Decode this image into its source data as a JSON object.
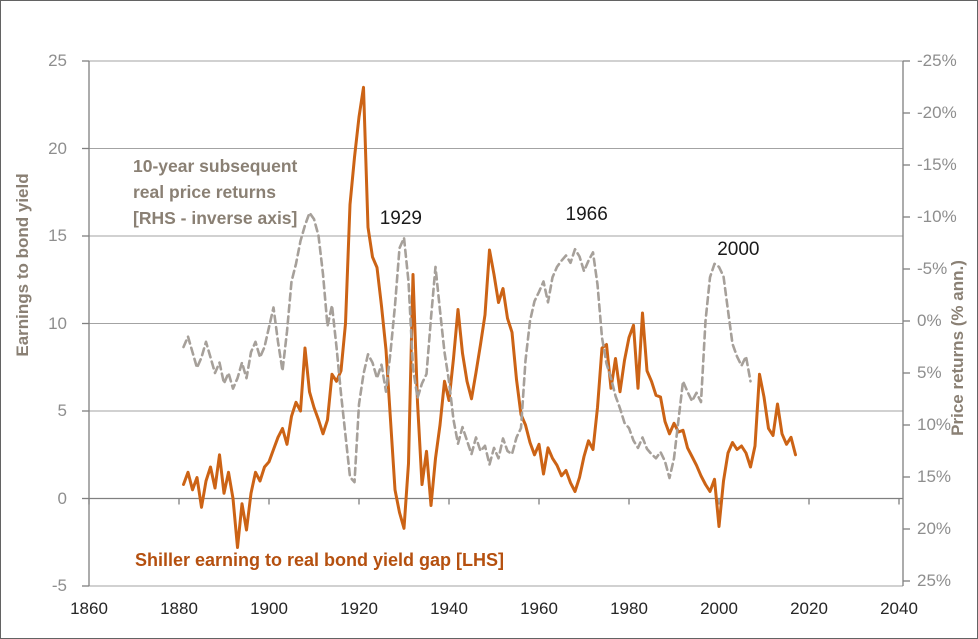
{
  "figure": {
    "left_axis_title": "Earnings to bond yield",
    "right_axis_title": "Price returns (% ann.)",
    "rhs_series_label_lines": [
      "10-year subsequent",
      "real price returns",
      "[RHS - inverse axis]"
    ],
    "lhs_series_label": "Shiller earning to real bond yield gap [LHS]",
    "colors": {
      "lhs_line": "#cc6315",
      "lhs_label_text": "#b5500f",
      "rhs_line": "#a6a09a",
      "axis_text": "#8e8e8e",
      "axis_title_text": "#8a8074",
      "x_tick_text": "#262626",
      "gridline": "#a3a3a3",
      "axis_line": "#808080",
      "annotation_text": "#1a1a1a"
    }
  },
  "chart_data": {
    "type": "line",
    "title": "",
    "xlabel": "",
    "x_axis": {
      "ticks": [
        1860,
        1880,
        1900,
        1920,
        1940,
        1960,
        1980,
        2000,
        2020,
        2040
      ],
      "range": [
        1860,
        2040
      ]
    },
    "left_axis": {
      "label": "Earnings to bond yield",
      "ticks": [
        25,
        20,
        15,
        10,
        5,
        0,
        -5
      ],
      "range": [
        -5,
        25
      ]
    },
    "right_axis": {
      "label": "Price returns (% ann.)",
      "tick_labels": [
        "-25%",
        "-20%",
        "-15%",
        "-10%",
        "-5%",
        "0%",
        "5%",
        "10%",
        "15%",
        "20%",
        "25%"
      ],
      "tick_values": [
        -25,
        -20,
        -15,
        -10,
        -5,
        0,
        5,
        10,
        15,
        20,
        25
      ],
      "range": [
        -25,
        25
      ],
      "inverted": true
    },
    "grid": "horizontal",
    "annotations": [
      {
        "text": "1929",
        "year": 1929.3,
        "lhs_value": 16.0
      },
      {
        "text": "1966",
        "year": 1970.6,
        "lhs_value": 16.2
      },
      {
        "text": "2000",
        "year": 2004.3,
        "lhs_value": 14.2
      }
    ],
    "series": [
      {
        "name": "Shiller earning to real bond yield gap [LHS]",
        "axis": "left",
        "style": "solid",
        "color": "#cc6315",
        "points": [
          [
            1881,
            0.8
          ],
          [
            1882,
            1.5
          ],
          [
            1883,
            0.5
          ],
          [
            1884,
            1.2
          ],
          [
            1885,
            -0.5
          ],
          [
            1886,
            1.0
          ],
          [
            1887,
            1.8
          ],
          [
            1888,
            0.6
          ],
          [
            1889,
            2.5
          ],
          [
            1890,
            0.3
          ],
          [
            1891,
            1.5
          ],
          [
            1892,
            0.0
          ],
          [
            1893,
            -2.8
          ],
          [
            1894,
            -0.3
          ],
          [
            1895,
            -1.8
          ],
          [
            1896,
            0.3
          ],
          [
            1897,
            1.5
          ],
          [
            1898,
            1.0
          ],
          [
            1899,
            1.8
          ],
          [
            1900,
            2.1
          ],
          [
            1901,
            2.8
          ],
          [
            1902,
            3.5
          ],
          [
            1903,
            4.0
          ],
          [
            1904,
            3.1
          ],
          [
            1905,
            4.7
          ],
          [
            1906,
            5.5
          ],
          [
            1907,
            5.0
          ],
          [
            1908,
            8.6
          ],
          [
            1909,
            6.1
          ],
          [
            1910,
            5.2
          ],
          [
            1911,
            4.5
          ],
          [
            1912,
            3.7
          ],
          [
            1913,
            4.5
          ],
          [
            1914,
            7.1
          ],
          [
            1915,
            6.7
          ],
          [
            1916,
            7.3
          ],
          [
            1917,
            10.0
          ],
          [
            1918,
            16.8
          ],
          [
            1919,
            19.5
          ],
          [
            1920,
            21.8
          ],
          [
            1921,
            23.5
          ],
          [
            1922,
            15.5
          ],
          [
            1923,
            13.8
          ],
          [
            1924,
            13.2
          ],
          [
            1925,
            11.0
          ],
          [
            1926,
            8.5
          ],
          [
            1927,
            4.5
          ],
          [
            1928,
            0.5
          ],
          [
            1929,
            -0.8
          ],
          [
            1930,
            -1.7
          ],
          [
            1931,
            2.0
          ],
          [
            1932,
            12.8
          ],
          [
            1933,
            5.5
          ],
          [
            1934,
            0.8
          ],
          [
            1935,
            2.7
          ],
          [
            1936,
            -0.4
          ],
          [
            1937,
            2.3
          ],
          [
            1938,
            4.2
          ],
          [
            1939,
            6.7
          ],
          [
            1940,
            5.6
          ],
          [
            1941,
            8.0
          ],
          [
            1942,
            10.8
          ],
          [
            1943,
            8.3
          ],
          [
            1944,
            6.7
          ],
          [
            1945,
            5.7
          ],
          [
            1946,
            7.2
          ],
          [
            1947,
            8.8
          ],
          [
            1948,
            10.5
          ],
          [
            1949,
            14.2
          ],
          [
            1950,
            12.8
          ],
          [
            1951,
            11.2
          ],
          [
            1952,
            12.0
          ],
          [
            1953,
            10.3
          ],
          [
            1954,
            9.5
          ],
          [
            1955,
            6.8
          ],
          [
            1956,
            4.8
          ],
          [
            1957,
            4.2
          ],
          [
            1958,
            3.2
          ],
          [
            1959,
            2.5
          ],
          [
            1960,
            3.1
          ],
          [
            1961,
            1.4
          ],
          [
            1962,
            2.9
          ],
          [
            1963,
            2.3
          ],
          [
            1964,
            1.9
          ],
          [
            1965,
            1.3
          ],
          [
            1966,
            1.6
          ],
          [
            1967,
            0.9
          ],
          [
            1968,
            0.4
          ],
          [
            1969,
            1.2
          ],
          [
            1970,
            2.4
          ],
          [
            1971,
            3.3
          ],
          [
            1972,
            2.8
          ],
          [
            1973,
            5.2
          ],
          [
            1974,
            8.6
          ],
          [
            1975,
            8.8
          ],
          [
            1976,
            6.3
          ],
          [
            1977,
            8.0
          ],
          [
            1978,
            6.1
          ],
          [
            1979,
            7.9
          ],
          [
            1980,
            9.2
          ],
          [
            1981,
            9.9
          ],
          [
            1982,
            6.3
          ],
          [
            1983,
            10.6
          ],
          [
            1984,
            7.3
          ],
          [
            1985,
            6.7
          ],
          [
            1986,
            5.9
          ],
          [
            1987,
            5.8
          ],
          [
            1988,
            4.4
          ],
          [
            1989,
            3.7
          ],
          [
            1990,
            4.3
          ],
          [
            1991,
            3.8
          ],
          [
            1992,
            3.9
          ],
          [
            1993,
            2.9
          ],
          [
            1994,
            2.4
          ],
          [
            1995,
            1.9
          ],
          [
            1996,
            1.3
          ],
          [
            1997,
            0.8
          ],
          [
            1998,
            0.4
          ],
          [
            1999,
            1.1
          ],
          [
            2000,
            -1.6
          ],
          [
            2001,
            1.0
          ],
          [
            2002,
            2.6
          ],
          [
            2003,
            3.2
          ],
          [
            2004,
            2.8
          ],
          [
            2005,
            3.0
          ],
          [
            2006,
            2.6
          ],
          [
            2007,
            1.8
          ],
          [
            2008,
            3.0
          ],
          [
            2009,
            7.1
          ],
          [
            2010,
            5.8
          ],
          [
            2011,
            4.0
          ],
          [
            2012,
            3.6
          ],
          [
            2013,
            5.4
          ],
          [
            2014,
            3.7
          ],
          [
            2015,
            3.1
          ],
          [
            2016,
            3.5
          ],
          [
            2017,
            2.5
          ]
        ]
      },
      {
        "name": "10-year subsequent real price returns [RHS - inverse axis]",
        "axis": "right",
        "style": "dashed",
        "color": "#a6a09a",
        "points": [
          [
            1881,
            2.5
          ],
          [
            1882,
            1.5
          ],
          [
            1883,
            3.0
          ],
          [
            1884,
            4.5
          ],
          [
            1885,
            3.5
          ],
          [
            1886,
            2.0
          ],
          [
            1887,
            3.5
          ],
          [
            1888,
            5.0
          ],
          [
            1889,
            4.0
          ],
          [
            1890,
            6.0
          ],
          [
            1891,
            5.0
          ],
          [
            1892,
            6.5
          ],
          [
            1893,
            5.5
          ],
          [
            1894,
            4.0
          ],
          [
            1895,
            5.5
          ],
          [
            1896,
            3.0
          ],
          [
            1897,
            2.0
          ],
          [
            1898,
            3.5
          ],
          [
            1899,
            2.5
          ],
          [
            1900,
            0.6
          ],
          [
            1901,
            -1.3
          ],
          [
            1902,
            2.0
          ],
          [
            1903,
            4.8
          ],
          [
            1904,
            1.0
          ],
          [
            1905,
            -3.8
          ],
          [
            1906,
            -5.5
          ],
          [
            1907,
            -7.7
          ],
          [
            1908,
            -9.2
          ],
          [
            1909,
            -10.4
          ],
          [
            1910,
            -9.8
          ],
          [
            1911,
            -8.2
          ],
          [
            1912,
            -4.5
          ],
          [
            1913,
            0.5
          ],
          [
            1914,
            -1.5
          ],
          [
            1915,
            2.5
          ],
          [
            1916,
            7.0
          ],
          [
            1917,
            11.0
          ],
          [
            1918,
            15.0
          ],
          [
            1919,
            15.5
          ],
          [
            1920,
            8.0
          ],
          [
            1921,
            5.1
          ],
          [
            1922,
            3.2
          ],
          [
            1923,
            4.0
          ],
          [
            1924,
            5.5
          ],
          [
            1925,
            4.2
          ],
          [
            1926,
            6.8
          ],
          [
            1927,
            3.0
          ],
          [
            1928,
            -1.5
          ],
          [
            1929,
            -7.0
          ],
          [
            1930,
            -8.0
          ],
          [
            1931,
            -3.8
          ],
          [
            1932,
            4.5
          ],
          [
            1933,
            7.4
          ],
          [
            1934,
            6.0
          ],
          [
            1935,
            5.1
          ],
          [
            1936,
            -0.3
          ],
          [
            1937,
            -5.2
          ],
          [
            1938,
            -1.0
          ],
          [
            1939,
            3.0
          ],
          [
            1940,
            5.8
          ],
          [
            1941,
            9.5
          ],
          [
            1942,
            11.8
          ],
          [
            1943,
            10.2
          ],
          [
            1944,
            11.5
          ],
          [
            1945,
            12.8
          ],
          [
            1946,
            11.2
          ],
          [
            1947,
            12.5
          ],
          [
            1948,
            12.0
          ],
          [
            1949,
            13.8
          ],
          [
            1950,
            12.2
          ],
          [
            1951,
            13.2
          ],
          [
            1952,
            11.3
          ],
          [
            1953,
            12.5
          ],
          [
            1954,
            12.8
          ],
          [
            1955,
            11.2
          ],
          [
            1956,
            10.3
          ],
          [
            1957,
            3.8
          ],
          [
            1958,
            0.0
          ],
          [
            1959,
            -1.9
          ],
          [
            1960,
            -2.8
          ],
          [
            1961,
            -3.8
          ],
          [
            1962,
            -1.8
          ],
          [
            1963,
            -4.2
          ],
          [
            1964,
            -5.2
          ],
          [
            1965,
            -5.8
          ],
          [
            1966,
            -6.3
          ],
          [
            1967,
            -5.6
          ],
          [
            1968,
            -6.9
          ],
          [
            1969,
            -6.2
          ],
          [
            1970,
            -4.8
          ],
          [
            1971,
            -5.8
          ],
          [
            1972,
            -6.6
          ],
          [
            1973,
            -3.5
          ],
          [
            1974,
            1.6
          ],
          [
            1975,
            4.1
          ],
          [
            1976,
            5.5
          ],
          [
            1977,
            7.2
          ],
          [
            1978,
            8.4
          ],
          [
            1979,
            9.8
          ],
          [
            1980,
            10.3
          ],
          [
            1981,
            11.5
          ],
          [
            1982,
            12.2
          ],
          [
            1983,
            11.2
          ],
          [
            1984,
            12.3
          ],
          [
            1985,
            12.8
          ],
          [
            1986,
            13.2
          ],
          [
            1987,
            12.6
          ],
          [
            1988,
            13.5
          ],
          [
            1989,
            15.1
          ],
          [
            1990,
            13.2
          ],
          [
            1991,
            9.5
          ],
          [
            1992,
            5.8
          ],
          [
            1993,
            6.8
          ],
          [
            1994,
            7.7
          ],
          [
            1995,
            6.9
          ],
          [
            1996,
            7.8
          ],
          [
            1997,
            0.0
          ],
          [
            1998,
            -4.2
          ],
          [
            1999,
            -5.5
          ],
          [
            2000,
            -5.2
          ],
          [
            2001,
            -4.3
          ],
          [
            2002,
            -1.0
          ],
          [
            2003,
            2.2
          ],
          [
            2004,
            3.4
          ],
          [
            2005,
            4.3
          ],
          [
            2006,
            3.4
          ],
          [
            2007,
            5.8
          ]
        ]
      }
    ]
  }
}
